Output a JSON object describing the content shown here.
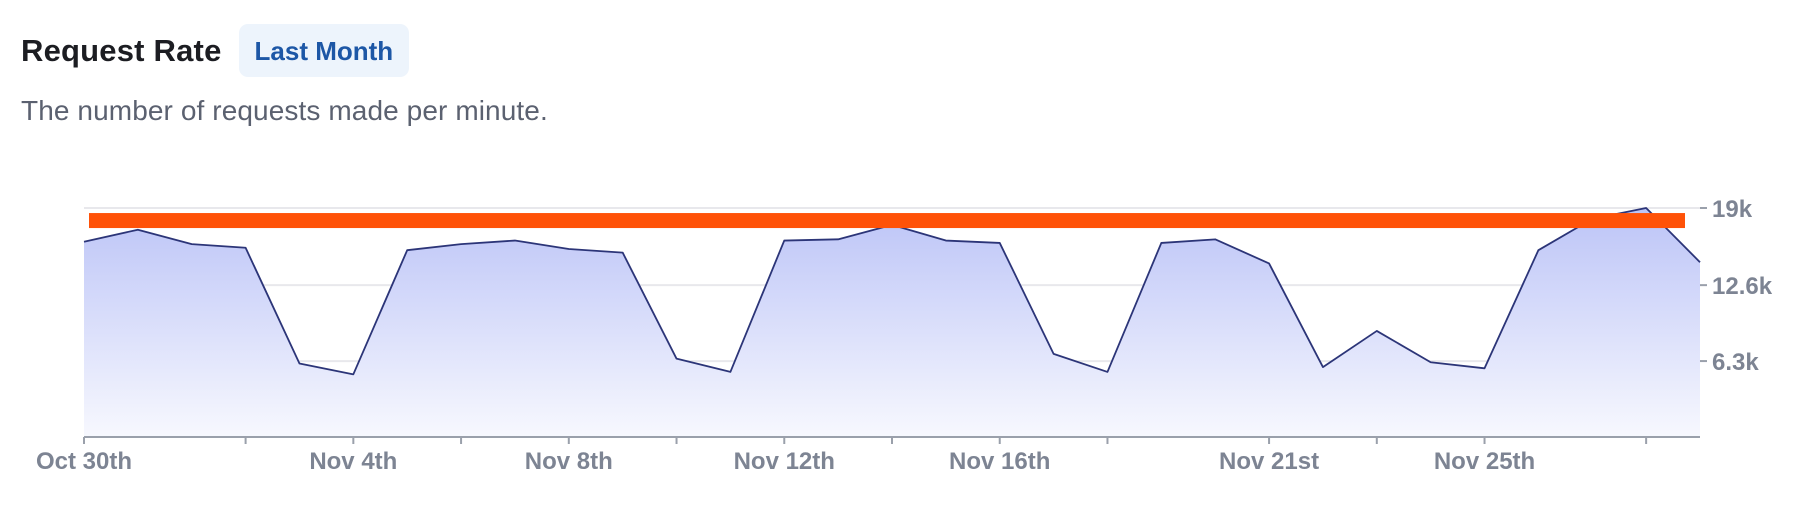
{
  "header": {
    "title": "Request Rate",
    "badge": "Last Month"
  },
  "subtitle": "The number of requests made per minute.",
  "colors": {
    "area_top": "#bcc4f7",
    "area_bottom": "#f7f8fe",
    "line": "#2c3578",
    "threshold": "#ff5208",
    "grid": "#e8e8ec",
    "axis": "#9aa0ab"
  },
  "chart_data": {
    "type": "area",
    "title": "Request Rate",
    "x_tick_labels": [
      "Oct 30th",
      "Nov 4th",
      "Nov 8th",
      "Nov 12th",
      "Nov 16th",
      "Nov 21st",
      "Nov 25th"
    ],
    "x_tick_index": [
      0,
      5,
      9,
      13,
      17,
      22,
      26
    ],
    "y_tick_labels": [
      "19k",
      "12.6k",
      "6.3k"
    ],
    "y_tick_values": [
      19000,
      12600,
      6300
    ],
    "ylim": [
      0,
      19000
    ],
    "grid": true,
    "threshold": 18000,
    "series": [
      {
        "values": [
          16200,
          17200,
          16000,
          15700,
          6100,
          5200,
          15500,
          16000,
          16300,
          15600,
          15300,
          6500,
          5400,
          16300,
          16400,
          17600,
          16300,
          16100,
          6900,
          5400,
          16100,
          16400,
          14400,
          5800,
          8800,
          6200,
          5700,
          15500,
          18100,
          19000,
          14500
        ]
      }
    ]
  }
}
